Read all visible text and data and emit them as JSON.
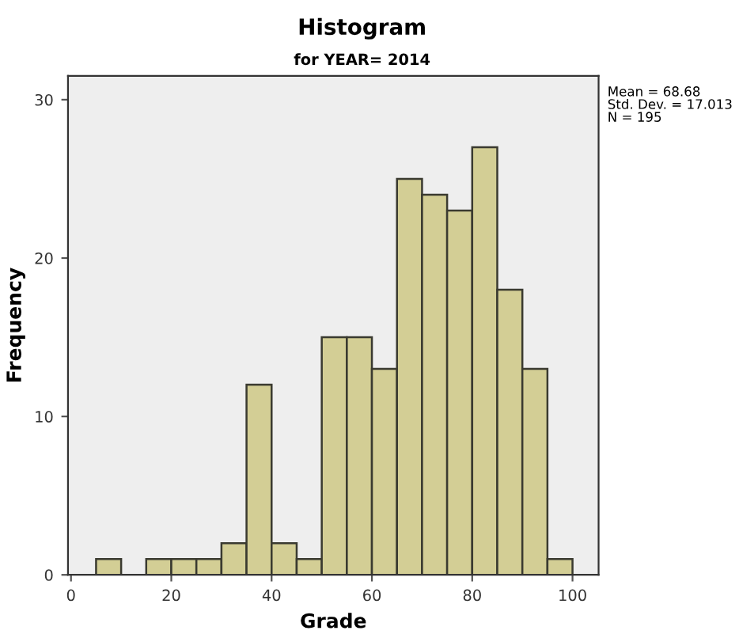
{
  "chart_data": {
    "type": "histogram",
    "title": "Histogram",
    "subtitle": "for YEAR= 2014",
    "xlabel": "Grade",
    "ylabel": "Frequency",
    "bins": [
      5,
      10,
      15,
      20,
      25,
      30,
      35,
      40,
      45,
      50,
      55,
      60,
      65,
      70,
      75,
      80,
      85,
      90,
      95,
      100
    ],
    "values": [
      1,
      0,
      1,
      1,
      1,
      2,
      12,
      2,
      1,
      15,
      15,
      13,
      25,
      24,
      23,
      27,
      18,
      13,
      1
    ],
    "color": "#d3ce95",
    "xlim": [
      -0.6,
      105.2
    ],
    "xticks": [
      0,
      20,
      40,
      60,
      80,
      100
    ],
    "ylim": [
      0,
      31.5
    ],
    "yticks": [
      0,
      10,
      20,
      30
    ],
    "grid": false,
    "annotations": [
      "Mean = 68.68\nStd. Dev. = 17.013\nN = 195"
    ]
  }
}
